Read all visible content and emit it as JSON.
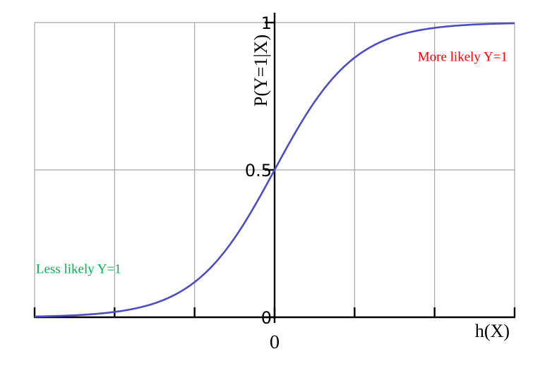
{
  "chart_data": {
    "type": "line",
    "title": "",
    "xlabel": "h(X)",
    "ylabel": "P(Y=1|X)",
    "xlim": [
      -6,
      6
    ],
    "ylim": [
      0,
      1
    ],
    "grid": true,
    "x_tick_labels": [
      {
        "value": 0,
        "label": "0"
      }
    ],
    "y_tick_labels": [
      {
        "value": 0,
        "label": "0"
      },
      {
        "value": 0.5,
        "label": "0.5"
      },
      {
        "value": 1,
        "label": "1"
      }
    ],
    "x_tick_marks": [
      -6,
      -4,
      -2,
      0,
      2,
      4,
      6
    ],
    "x_grid": [
      -4,
      -2,
      2,
      4,
      6
    ],
    "y_grid": [
      0.5,
      1
    ],
    "series": [
      {
        "function": "sigmoid",
        "color": "#4d4dc2",
        "x": [
          -6,
          -5.5,
          -5,
          -4.5,
          -4,
          -3.5,
          -3,
          -2.5,
          -2,
          -1.5,
          -1,
          -0.5,
          0,
          0.5,
          1,
          1.5,
          2,
          2.5,
          3,
          3.5,
          4,
          4.5,
          5,
          5.5,
          6
        ],
        "y": [
          0.0025,
          0.0041,
          0.0067,
          0.011,
          0.018,
          0.0293,
          0.0474,
          0.0759,
          0.1192,
          0.1824,
          0.2689,
          0.3775,
          0.5,
          0.6225,
          0.7311,
          0.8176,
          0.8808,
          0.9241,
          0.9526,
          0.9707,
          0.982,
          0.989,
          0.9933,
          0.9959,
          0.9975
        ]
      }
    ],
    "annotations": [
      {
        "text": "More likely Y=1",
        "x": 4.7,
        "y": 0.87,
        "color": "#ff0000"
      },
      {
        "text": "Less likely Y=1",
        "x": -4.9,
        "y": 0.15,
        "color": "#00b050"
      }
    ]
  }
}
